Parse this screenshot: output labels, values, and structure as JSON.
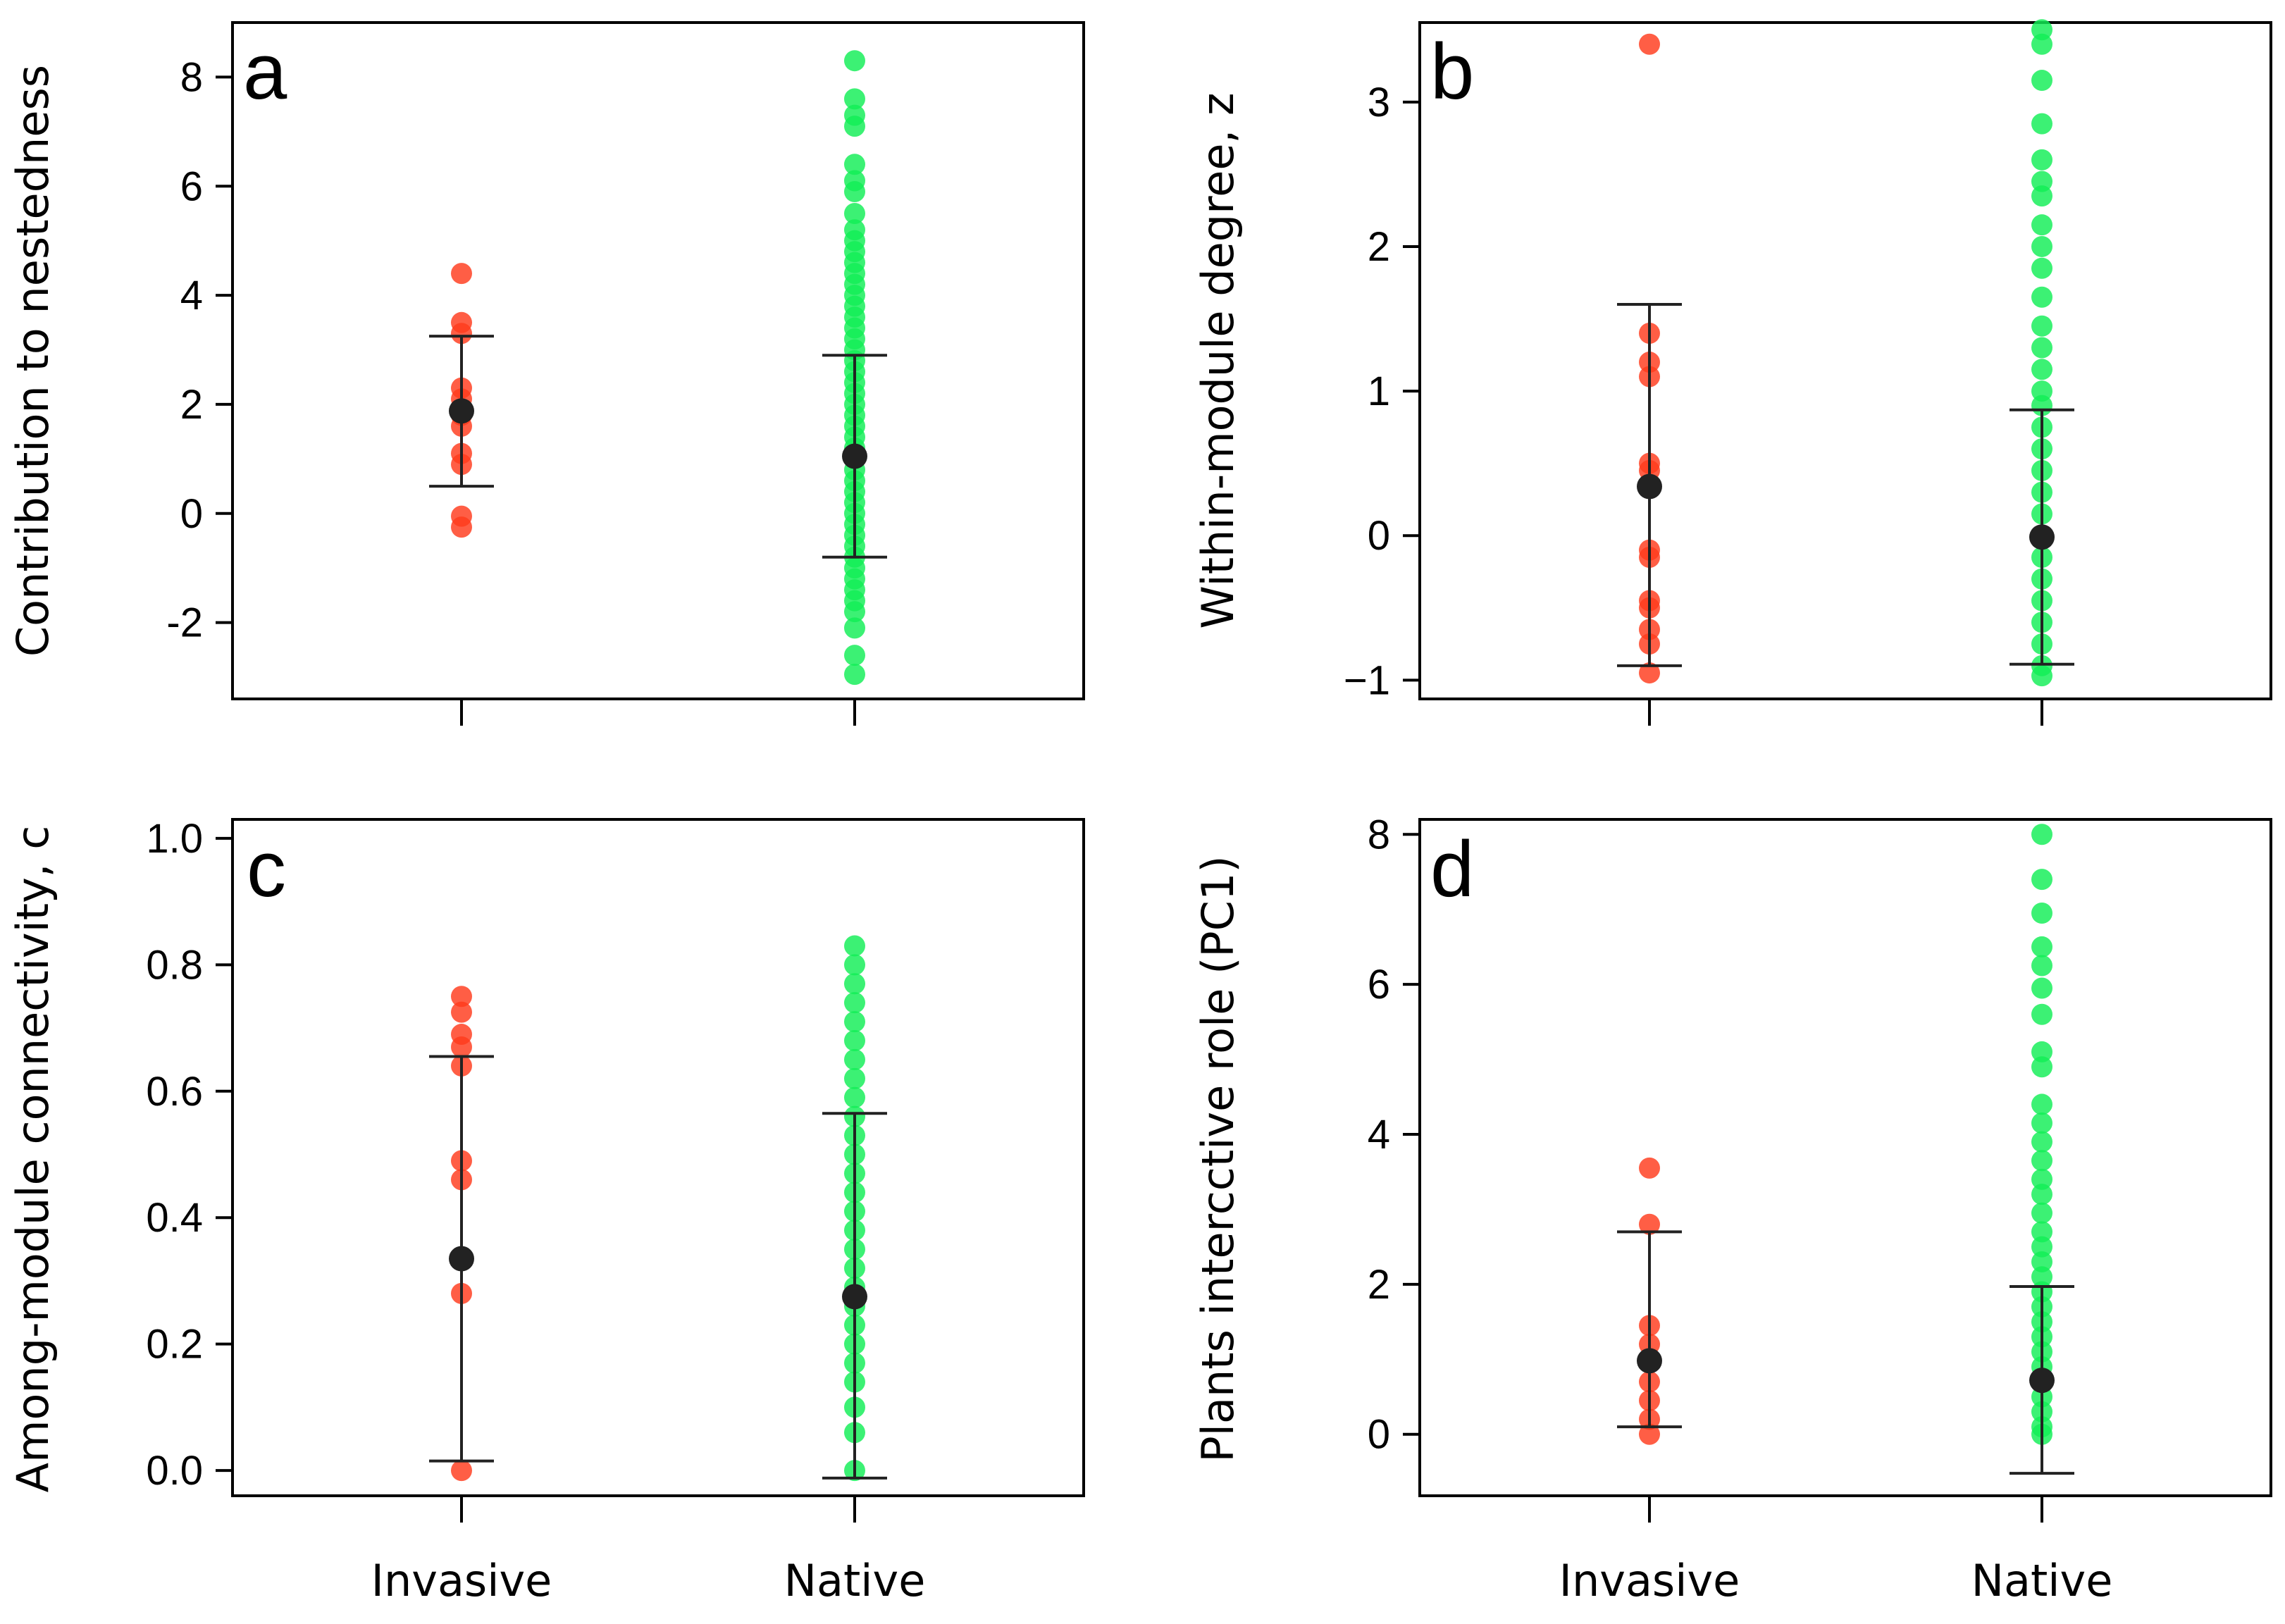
{
  "colors": {
    "invasive": "#ff3a1c",
    "native": "#11ee55",
    "mean": "#222222",
    "frame": "#000000"
  },
  "groups": [
    "Invasive",
    "Native"
  ],
  "chart_data": [
    {
      "type": "scatter",
      "panel_label": "a",
      "title": "",
      "xlabel": "",
      "ylabel": "Contribution to nestedness",
      "categories": [
        "Invasive",
        "Native"
      ],
      "ylim": [
        -3.4,
        9.0
      ],
      "yticks": [
        -2,
        0,
        2,
        4,
        6,
        8
      ],
      "tick_labels": [
        "-2",
        "0",
        "2",
        "4",
        "6",
        "8"
      ],
      "series": [
        {
          "name": "Invasive",
          "values": [
            4.4,
            3.5,
            3.3,
            2.3,
            2.1,
            1.8,
            1.6,
            1.1,
            0.9,
            -0.05,
            -0.25
          ],
          "mean": 1.88,
          "err_low": 0.5,
          "err_high": 3.25
        },
        {
          "name": "Native",
          "values": [
            8.3,
            7.6,
            7.3,
            7.1,
            6.4,
            6.1,
            5.9,
            5.5,
            5.2,
            5.0,
            4.8,
            4.6,
            4.4,
            4.2,
            4.0,
            3.8,
            3.6,
            3.4,
            3.2,
            3.0,
            2.8,
            2.6,
            2.4,
            2.2,
            2.0,
            1.8,
            1.6,
            1.4,
            1.2,
            1.0,
            0.8,
            0.6,
            0.4,
            0.2,
            0.0,
            -0.2,
            -0.4,
            -0.6,
            -0.8,
            -1.0,
            -1.2,
            -1.4,
            -1.6,
            -1.8,
            -2.1,
            -2.6,
            -2.95
          ],
          "mean": 1.05,
          "err_low": -0.8,
          "err_high": 2.9
        }
      ]
    },
    {
      "type": "scatter",
      "panel_label": "b",
      "title": "",
      "xlabel": "",
      "ylabel": "Within-module degree, z",
      "categories": [
        "Invasive",
        "Native"
      ],
      "ylim": [
        -1.13,
        3.55
      ],
      "yticks": [
        -1,
        0,
        1,
        2,
        3
      ],
      "tick_labels": [
        "−1",
        "0",
        "1",
        "2",
        "3"
      ],
      "series": [
        {
          "name": "Invasive",
          "values": [
            3.4,
            1.4,
            1.2,
            1.1,
            0.5,
            0.45,
            -0.1,
            -0.15,
            -0.45,
            -0.5,
            -0.65,
            -0.75,
            -0.95
          ],
          "mean": 0.34,
          "err_low": -0.9,
          "err_high": 1.6
        },
        {
          "name": "Native",
          "values": [
            3.5,
            3.4,
            3.15,
            2.85,
            2.6,
            2.45,
            2.35,
            2.15,
            2.0,
            1.85,
            1.65,
            1.45,
            1.3,
            1.15,
            1.0,
            0.9,
            0.75,
            0.6,
            0.45,
            0.3,
            0.15,
            0.0,
            -0.15,
            -0.3,
            -0.45,
            -0.6,
            -0.75,
            -0.9,
            -0.97
          ],
          "mean": -0.01,
          "err_low": -0.89,
          "err_high": 0.87
        }
      ]
    },
    {
      "type": "scatter",
      "panel_label": "c",
      "title": "",
      "xlabel": "",
      "ylabel": "Among-module connectivity, c",
      "categories": [
        "Invasive",
        "Native"
      ],
      "ylim": [
        -0.04,
        1.03
      ],
      "yticks": [
        0.0,
        0.2,
        0.4,
        0.6,
        0.8,
        1.0
      ],
      "tick_labels": [
        "0.0",
        "0.2",
        "0.4",
        "0.6",
        "0.8",
        "1.0"
      ],
      "series": [
        {
          "name": "Invasive",
          "values": [
            0.75,
            0.725,
            0.69,
            0.67,
            0.64,
            0.49,
            0.46,
            0.28,
            0.0
          ],
          "mean": 0.335,
          "err_low": 0.015,
          "err_high": 0.655
        },
        {
          "name": "Native",
          "values": [
            0.83,
            0.8,
            0.77,
            0.74,
            0.71,
            0.68,
            0.65,
            0.62,
            0.59,
            0.56,
            0.53,
            0.5,
            0.47,
            0.44,
            0.41,
            0.38,
            0.35,
            0.32,
            0.29,
            0.26,
            0.23,
            0.2,
            0.17,
            0.14,
            0.1,
            0.06,
            0.0
          ],
          "mean": 0.275,
          "err_low": -0.012,
          "err_high": 0.565
        }
      ]
    },
    {
      "type": "scatter",
      "panel_label": "d",
      "title": "",
      "xlabel": "",
      "ylabel": "Plants intercctive role (PC1)",
      "categories": [
        "Invasive",
        "Native"
      ],
      "ylim": [
        -0.82,
        8.2
      ],
      "yticks": [
        0,
        2,
        4,
        6,
        8
      ],
      "tick_labels": [
        "0",
        "2",
        "4",
        "6",
        "8"
      ],
      "series": [
        {
          "name": "Invasive",
          "values": [
            3.55,
            2.8,
            1.45,
            1.2,
            1.0,
            0.7,
            0.45,
            0.2,
            0.0
          ],
          "mean": 0.98,
          "err_low": 0.1,
          "err_high": 2.7
        },
        {
          "name": "Native",
          "values": [
            8.0,
            7.4,
            6.95,
            6.5,
            6.25,
            5.95,
            5.6,
            5.1,
            4.9,
            4.4,
            4.15,
            3.9,
            3.65,
            3.4,
            3.2,
            2.95,
            2.7,
            2.5,
            2.3,
            2.1,
            1.9,
            1.7,
            1.5,
            1.3,
            1.1,
            0.9,
            0.7,
            0.5,
            0.3,
            0.1,
            0.0
          ],
          "mean": 0.72,
          "err_low": -0.52,
          "err_high": 1.97
        }
      ]
    }
  ]
}
